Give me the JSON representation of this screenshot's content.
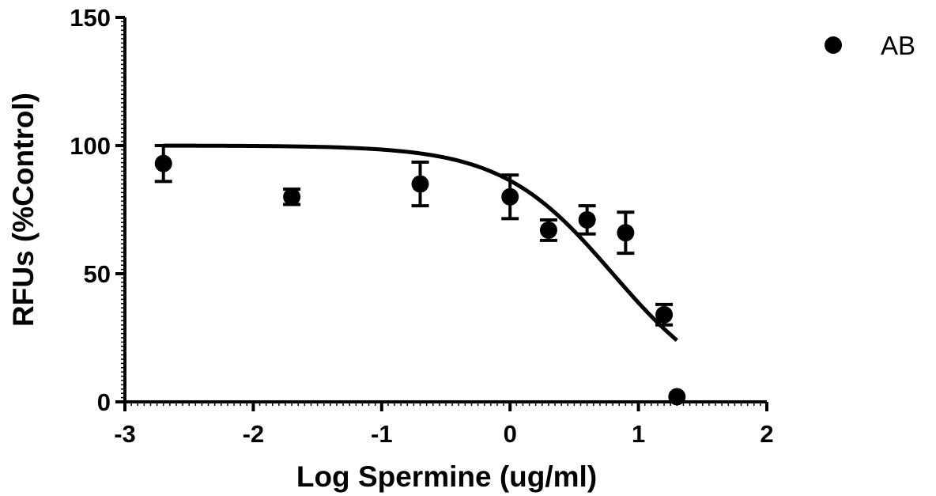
{
  "chart_data": {
    "type": "scatter",
    "title": "",
    "xlabel": "Log Spermine (ug/ml)",
    "ylabel": "RFUs (%Control)",
    "xlim": [
      -3,
      2
    ],
    "ylim": [
      0,
      150
    ],
    "x_ticks": [
      -3,
      -2,
      -1,
      0,
      1,
      2
    ],
    "y_ticks": [
      0,
      50,
      100,
      150
    ],
    "x_tick_labels": [
      "-3",
      "-2",
      "-1",
      "0",
      "1",
      "2"
    ],
    "y_tick_labels": [
      "0",
      "50",
      "100",
      "150"
    ],
    "grid": false,
    "legend_position": "top-right",
    "series": [
      {
        "name": "AB",
        "color": "#000000",
        "marker": "circle",
        "points": [
          {
            "x": -2.7,
            "y": 93,
            "err": 7
          },
          {
            "x": -1.7,
            "y": 80,
            "err": 3
          },
          {
            "x": -0.7,
            "y": 85,
            "err": 8.5
          },
          {
            "x": 0.0,
            "y": 80,
            "err": 8.5
          },
          {
            "x": 0.3,
            "y": 67,
            "err": 4
          },
          {
            "x": 0.6,
            "y": 71,
            "err": 5.5
          },
          {
            "x": 0.9,
            "y": 66,
            "err": 8
          },
          {
            "x": 1.2,
            "y": 34,
            "err": 4
          },
          {
            "x": 1.3,
            "y": 2,
            "err": 0
          }
        ]
      }
    ],
    "fit_curve": {
      "model": "sigmoidal dose-response",
      "top": 100,
      "bottom": 0,
      "log_ic50": 0.8,
      "hill_slope": -1.0,
      "x_range": [
        -2.7,
        1.3
      ]
    }
  }
}
